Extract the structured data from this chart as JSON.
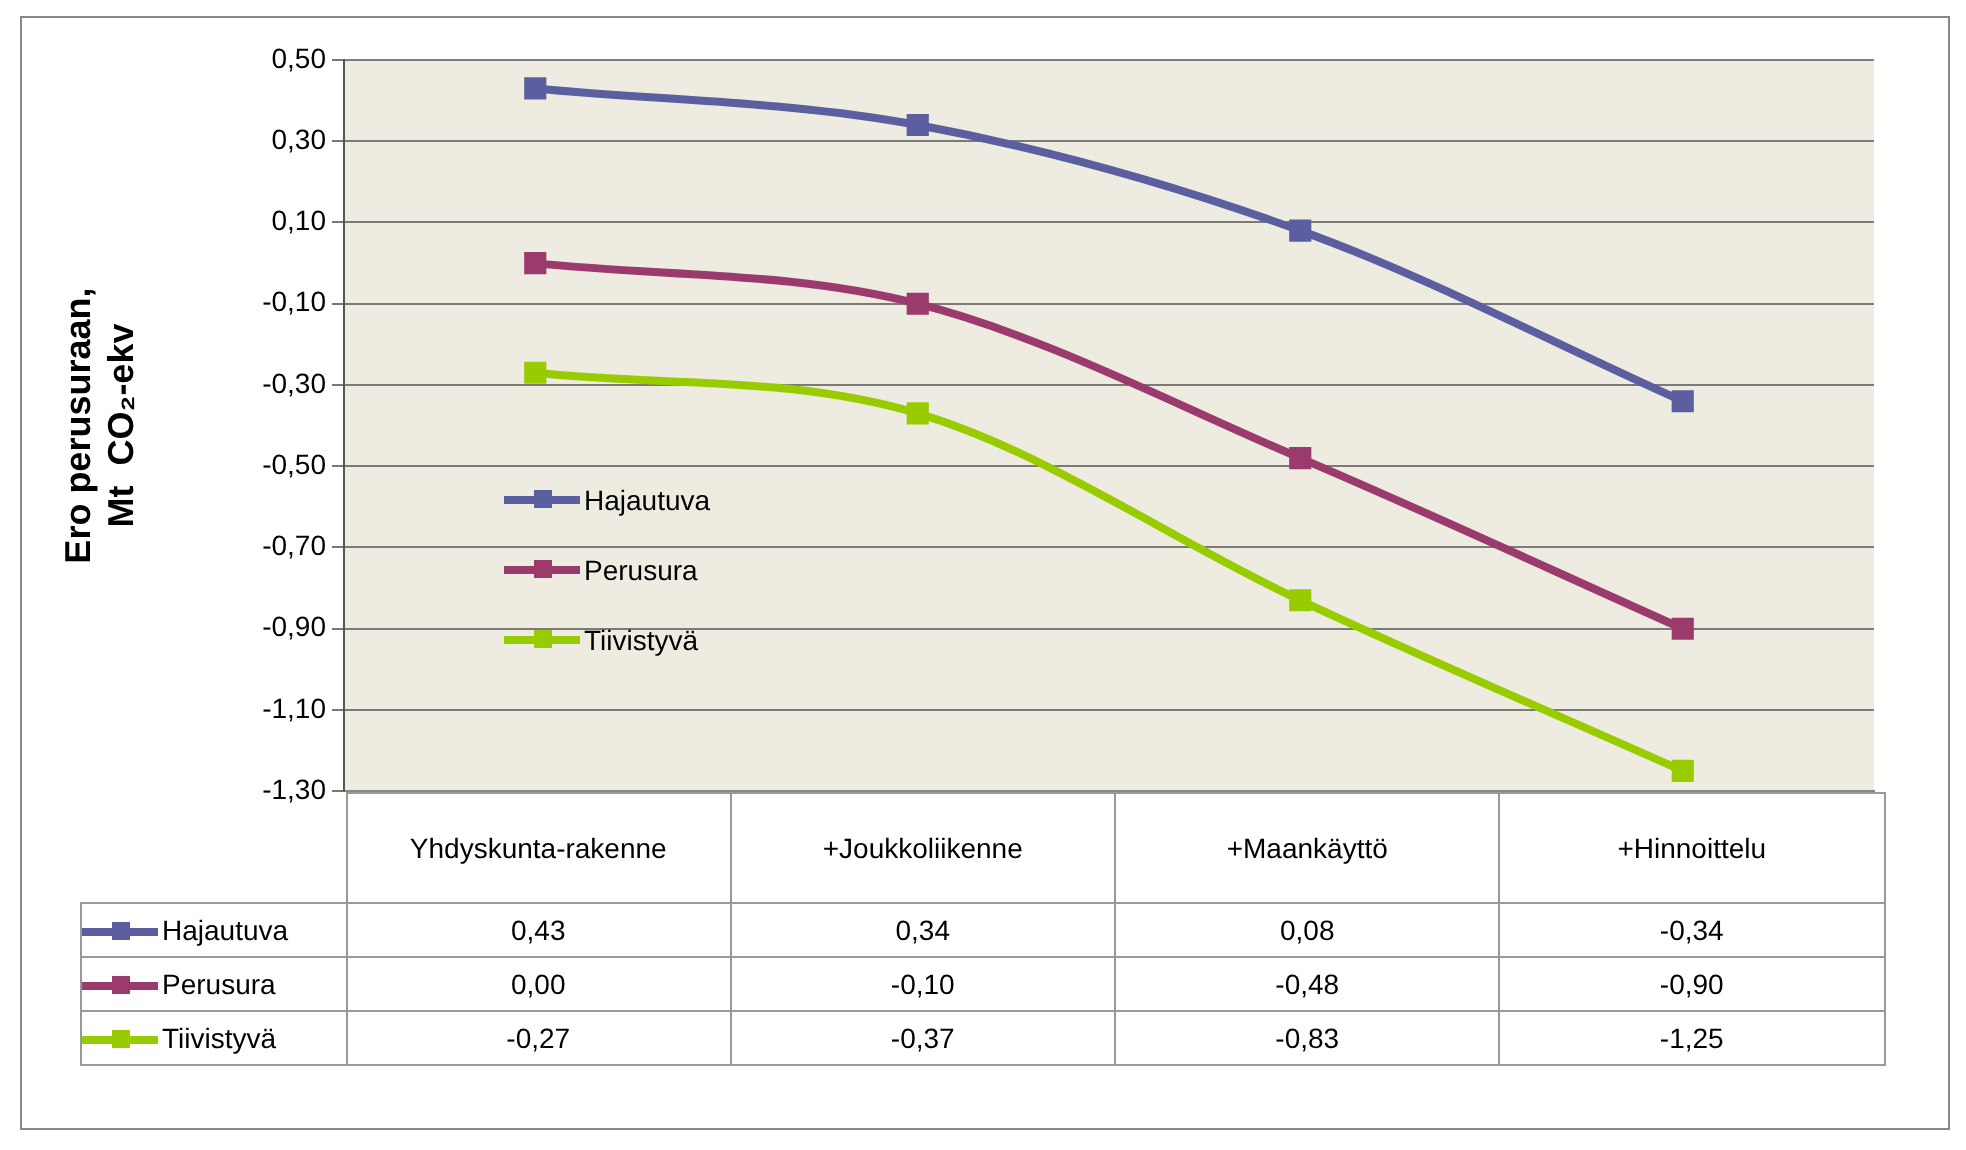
{
  "chart_data": {
    "type": "line",
    "ylabel": "Ero perusuraan,\nMt  CO₂-ekv",
    "categories": [
      "Yhdyskunta-rakenne",
      "+Joukkoliikenne",
      "+Maankäyttö",
      "+Hinnoittelu"
    ],
    "series": [
      {
        "name": "Hajautuva",
        "color": "#5b5fa0",
        "values": [
          0.43,
          0.34,
          0.08,
          -0.34
        ],
        "value_labels": [
          "0,43",
          "0,34",
          "0,08",
          "-0,34"
        ]
      },
      {
        "name": "Perusura",
        "color": "#9b3a6c",
        "values": [
          0.0,
          -0.1,
          -0.48,
          -0.9
        ],
        "value_labels": [
          "0,00",
          "-0,10",
          "-0,48",
          "-0,90"
        ]
      },
      {
        "name": "Tiivistyvä",
        "color": "#99cc00",
        "values": [
          -0.27,
          -0.37,
          -0.83,
          -1.25
        ],
        "value_labels": [
          "-0,27",
          "-0,37",
          "-0,83",
          "-1,25"
        ]
      }
    ],
    "ylim": [
      -1.3,
      0.5
    ],
    "yticks": [
      {
        "value": 0.5,
        "label": "0,50"
      },
      {
        "value": 0.3,
        "label": "0,30"
      },
      {
        "value": 0.1,
        "label": "0,10"
      },
      {
        "value": -0.1,
        "label": "-0,10"
      },
      {
        "value": -0.3,
        "label": "-0,30"
      },
      {
        "value": -0.5,
        "label": "-0,50"
      },
      {
        "value": -0.7,
        "label": "-0,70"
      },
      {
        "value": -0.9,
        "label": "-0,90"
      },
      {
        "value": -1.1,
        "label": "-1,10"
      },
      {
        "value": -1.3,
        "label": "-1,30"
      }
    ],
    "grid": "y",
    "legend": "left",
    "marker": "square",
    "line_style": "solid"
  }
}
